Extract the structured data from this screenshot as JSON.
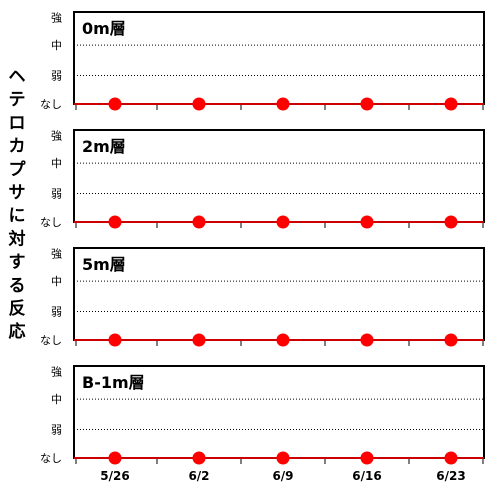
{
  "chart_data": {
    "type": "line",
    "ylabel": "ヘテロカプサに対する反応",
    "x_categories": [
      "5/26",
      "6/2",
      "6/9",
      "6/16",
      "6/23"
    ],
    "y_levels": [
      "なし",
      "弱",
      "中",
      "強"
    ],
    "grid": "dotted horizontal lines at 弱 and 中",
    "colors": {
      "series": "#ff0000",
      "line": "#cc0000"
    },
    "panels": [
      {
        "title": "0m層",
        "values": [
          0,
          0,
          0,
          0,
          0
        ]
      },
      {
        "title": "2m層",
        "values": [
          0,
          0,
          0,
          0,
          0
        ]
      },
      {
        "title": "5m層",
        "values": [
          0,
          0,
          0,
          0,
          0
        ]
      },
      {
        "title": "B-1m層",
        "values": [
          0,
          0,
          0,
          0,
          0
        ]
      }
    ]
  }
}
